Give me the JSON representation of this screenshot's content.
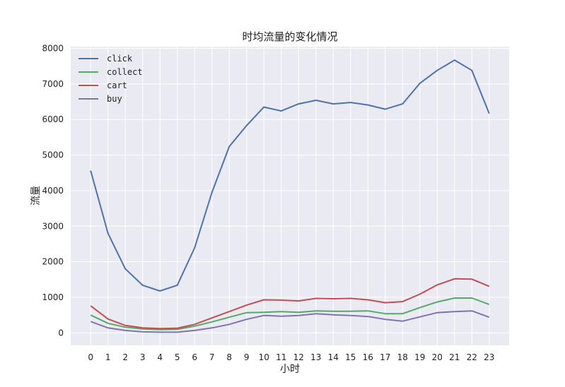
{
  "chart_data": {
    "type": "line",
    "title": "时均流量的变化情况",
    "xlabel": "小时",
    "ylabel": "流量",
    "x": [
      0,
      1,
      2,
      3,
      4,
      5,
      6,
      7,
      8,
      9,
      10,
      11,
      12,
      13,
      14,
      15,
      16,
      17,
      18,
      19,
      20,
      21,
      22,
      23
    ],
    "ylim": [
      -350,
      8050
    ],
    "yticks": [
      0,
      1000,
      2000,
      3000,
      4000,
      5000,
      6000,
      7000,
      8000
    ],
    "grid": true,
    "legend": "top-left",
    "series": [
      {
        "name": "click",
        "color": "#4c72b0",
        "values": [
          4560,
          2800,
          1800,
          1340,
          1180,
          1340,
          2390,
          3950,
          5240,
          5830,
          6350,
          6240,
          6440,
          6540,
          6440,
          6480,
          6410,
          6290,
          6440,
          7020,
          7380,
          7670,
          7380,
          6170
        ]
      },
      {
        "name": "collect",
        "color": "#55a868",
        "values": [
          500,
          270,
          160,
          110,
          90,
          100,
          190,
          310,
          440,
          570,
          580,
          600,
          580,
          620,
          610,
          610,
          620,
          540,
          540,
          710,
          870,
          980,
          980,
          800
        ]
      },
      {
        "name": "cart",
        "color": "#c44e52",
        "values": [
          760,
          390,
          210,
          140,
          120,
          130,
          240,
          420,
          600,
          780,
          930,
          920,
          900,
          970,
          960,
          970,
          930,
          850,
          880,
          1090,
          1350,
          1520,
          1510,
          1310
        ]
      },
      {
        "name": "buy",
        "color": "#8172b2",
        "values": [
          320,
          140,
          70,
          30,
          20,
          20,
          70,
          140,
          240,
          380,
          490,
          470,
          490,
          540,
          510,
          490,
          460,
          380,
          330,
          450,
          570,
          600,
          620,
          440
        ]
      }
    ]
  }
}
